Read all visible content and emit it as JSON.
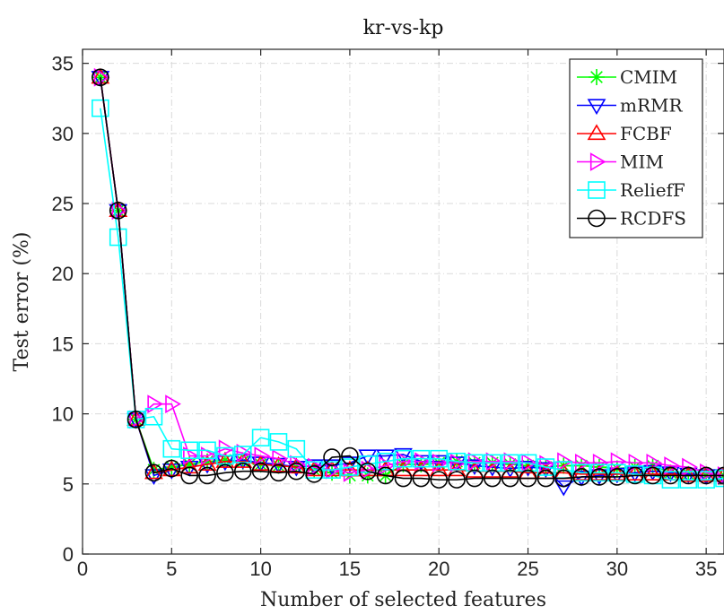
{
  "chart_data": {
    "type": "line",
    "title": "kr-vs-kp",
    "xlabel": "Number of selected features",
    "ylabel": "Test error (%)",
    "xlim": [
      0,
      36
    ],
    "ylim": [
      0,
      36
    ],
    "xticks": [
      0,
      5,
      10,
      15,
      20,
      25,
      30,
      35
    ],
    "yticks": [
      0,
      5,
      10,
      15,
      20,
      25,
      30,
      35
    ],
    "grid": true,
    "legend_position": "top-right",
    "x": [
      1,
      2,
      3,
      4,
      5,
      6,
      7,
      8,
      9,
      10,
      11,
      12,
      13,
      14,
      15,
      16,
      17,
      18,
      19,
      20,
      21,
      22,
      23,
      24,
      25,
      26,
      27,
      28,
      29,
      30,
      31,
      32,
      33,
      34,
      35,
      36
    ],
    "series": [
      {
        "name": "CMIM",
        "color": "#00ff00",
        "marker": "star",
        "values": [
          34.0,
          24.5,
          9.6,
          6.0,
          6.2,
          6.4,
          6.6,
          6.7,
          6.6,
          6.4,
          6.3,
          6.2,
          6.0,
          5.8,
          5.6,
          5.6,
          5.6,
          6.4,
          6.4,
          6.5,
          6.6,
          6.5,
          6.5,
          6.4,
          6.3,
          6.2,
          6.3,
          6.3,
          6.2,
          6.1,
          6.2,
          6.3,
          5.8,
          5.7,
          5.6,
          5.6
        ]
      },
      {
        "name": "mRMR",
        "color": "#0000ff",
        "marker": "triangle-down",
        "values": [
          34.0,
          24.5,
          9.6,
          5.6,
          6.0,
          6.2,
          6.4,
          6.6,
          6.7,
          6.5,
          6.4,
          6.2,
          6.3,
          6.3,
          6.5,
          7.0,
          7.0,
          7.1,
          6.6,
          6.6,
          6.5,
          6.3,
          6.2,
          6.1,
          6.2,
          6.1,
          4.8,
          5.5,
          5.6,
          5.7,
          5.8,
          5.9,
          5.8,
          5.7,
          5.6,
          5.6
        ]
      },
      {
        "name": "FCBF",
        "color": "#ff0000",
        "marker": "triangle-up",
        "values": [
          34.0,
          24.5,
          9.6,
          5.8,
          6.0,
          6.2,
          6.4,
          6.6,
          6.6,
          6.4,
          6.3,
          6.2,
          6.0,
          6.0,
          6.0,
          6.0,
          6.0,
          6.0,
          6.0,
          6.0,
          6.0,
          5.9,
          5.9,
          5.9,
          5.8,
          5.8,
          5.8,
          5.7,
          5.7,
          5.7,
          5.7,
          5.7,
          5.7,
          5.6,
          5.6,
          5.6
        ]
      },
      {
        "name": "MIM",
        "color": "#ff00ff",
        "marker": "triangle-right",
        "values": [
          34.0,
          24.5,
          9.6,
          10.7,
          10.7,
          7.0,
          7.0,
          7.5,
          7.2,
          7.0,
          6.8,
          6.4,
          6.2,
          6.0,
          5.8,
          6.0,
          6.3,
          6.6,
          6.6,
          6.5,
          6.5,
          6.6,
          6.6,
          6.6,
          6.5,
          6.4,
          6.6,
          6.5,
          6.5,
          6.6,
          6.5,
          6.5,
          6.3,
          6.2,
          5.8,
          5.6
        ]
      },
      {
        "name": "ReliefF",
        "color": "#00ffff",
        "marker": "square",
        "values": [
          31.8,
          22.6,
          9.6,
          9.8,
          7.5,
          7.4,
          7.4,
          7.0,
          7.1,
          8.3,
          8.0,
          7.5,
          6.0,
          6.0,
          6.2,
          6.4,
          6.6,
          6.8,
          6.8,
          6.8,
          6.6,
          6.5,
          6.5,
          6.5,
          6.5,
          6.2,
          6.0,
          5.8,
          5.8,
          5.8,
          5.7,
          5.6,
          5.3,
          5.3,
          5.3,
          5.4
        ]
      },
      {
        "name": "RCDFS",
        "color": "#000000",
        "marker": "circle",
        "values": [
          34.0,
          24.5,
          9.6,
          5.8,
          6.1,
          5.6,
          5.6,
          5.8,
          5.9,
          5.9,
          5.8,
          5.9,
          5.7,
          6.9,
          7.0,
          5.9,
          5.6,
          5.4,
          5.4,
          5.3,
          5.3,
          5.4,
          5.4,
          5.4,
          5.4,
          5.4,
          5.4,
          5.5,
          5.5,
          5.5,
          5.6,
          5.6,
          5.6,
          5.6,
          5.6,
          5.6
        ]
      }
    ]
  }
}
